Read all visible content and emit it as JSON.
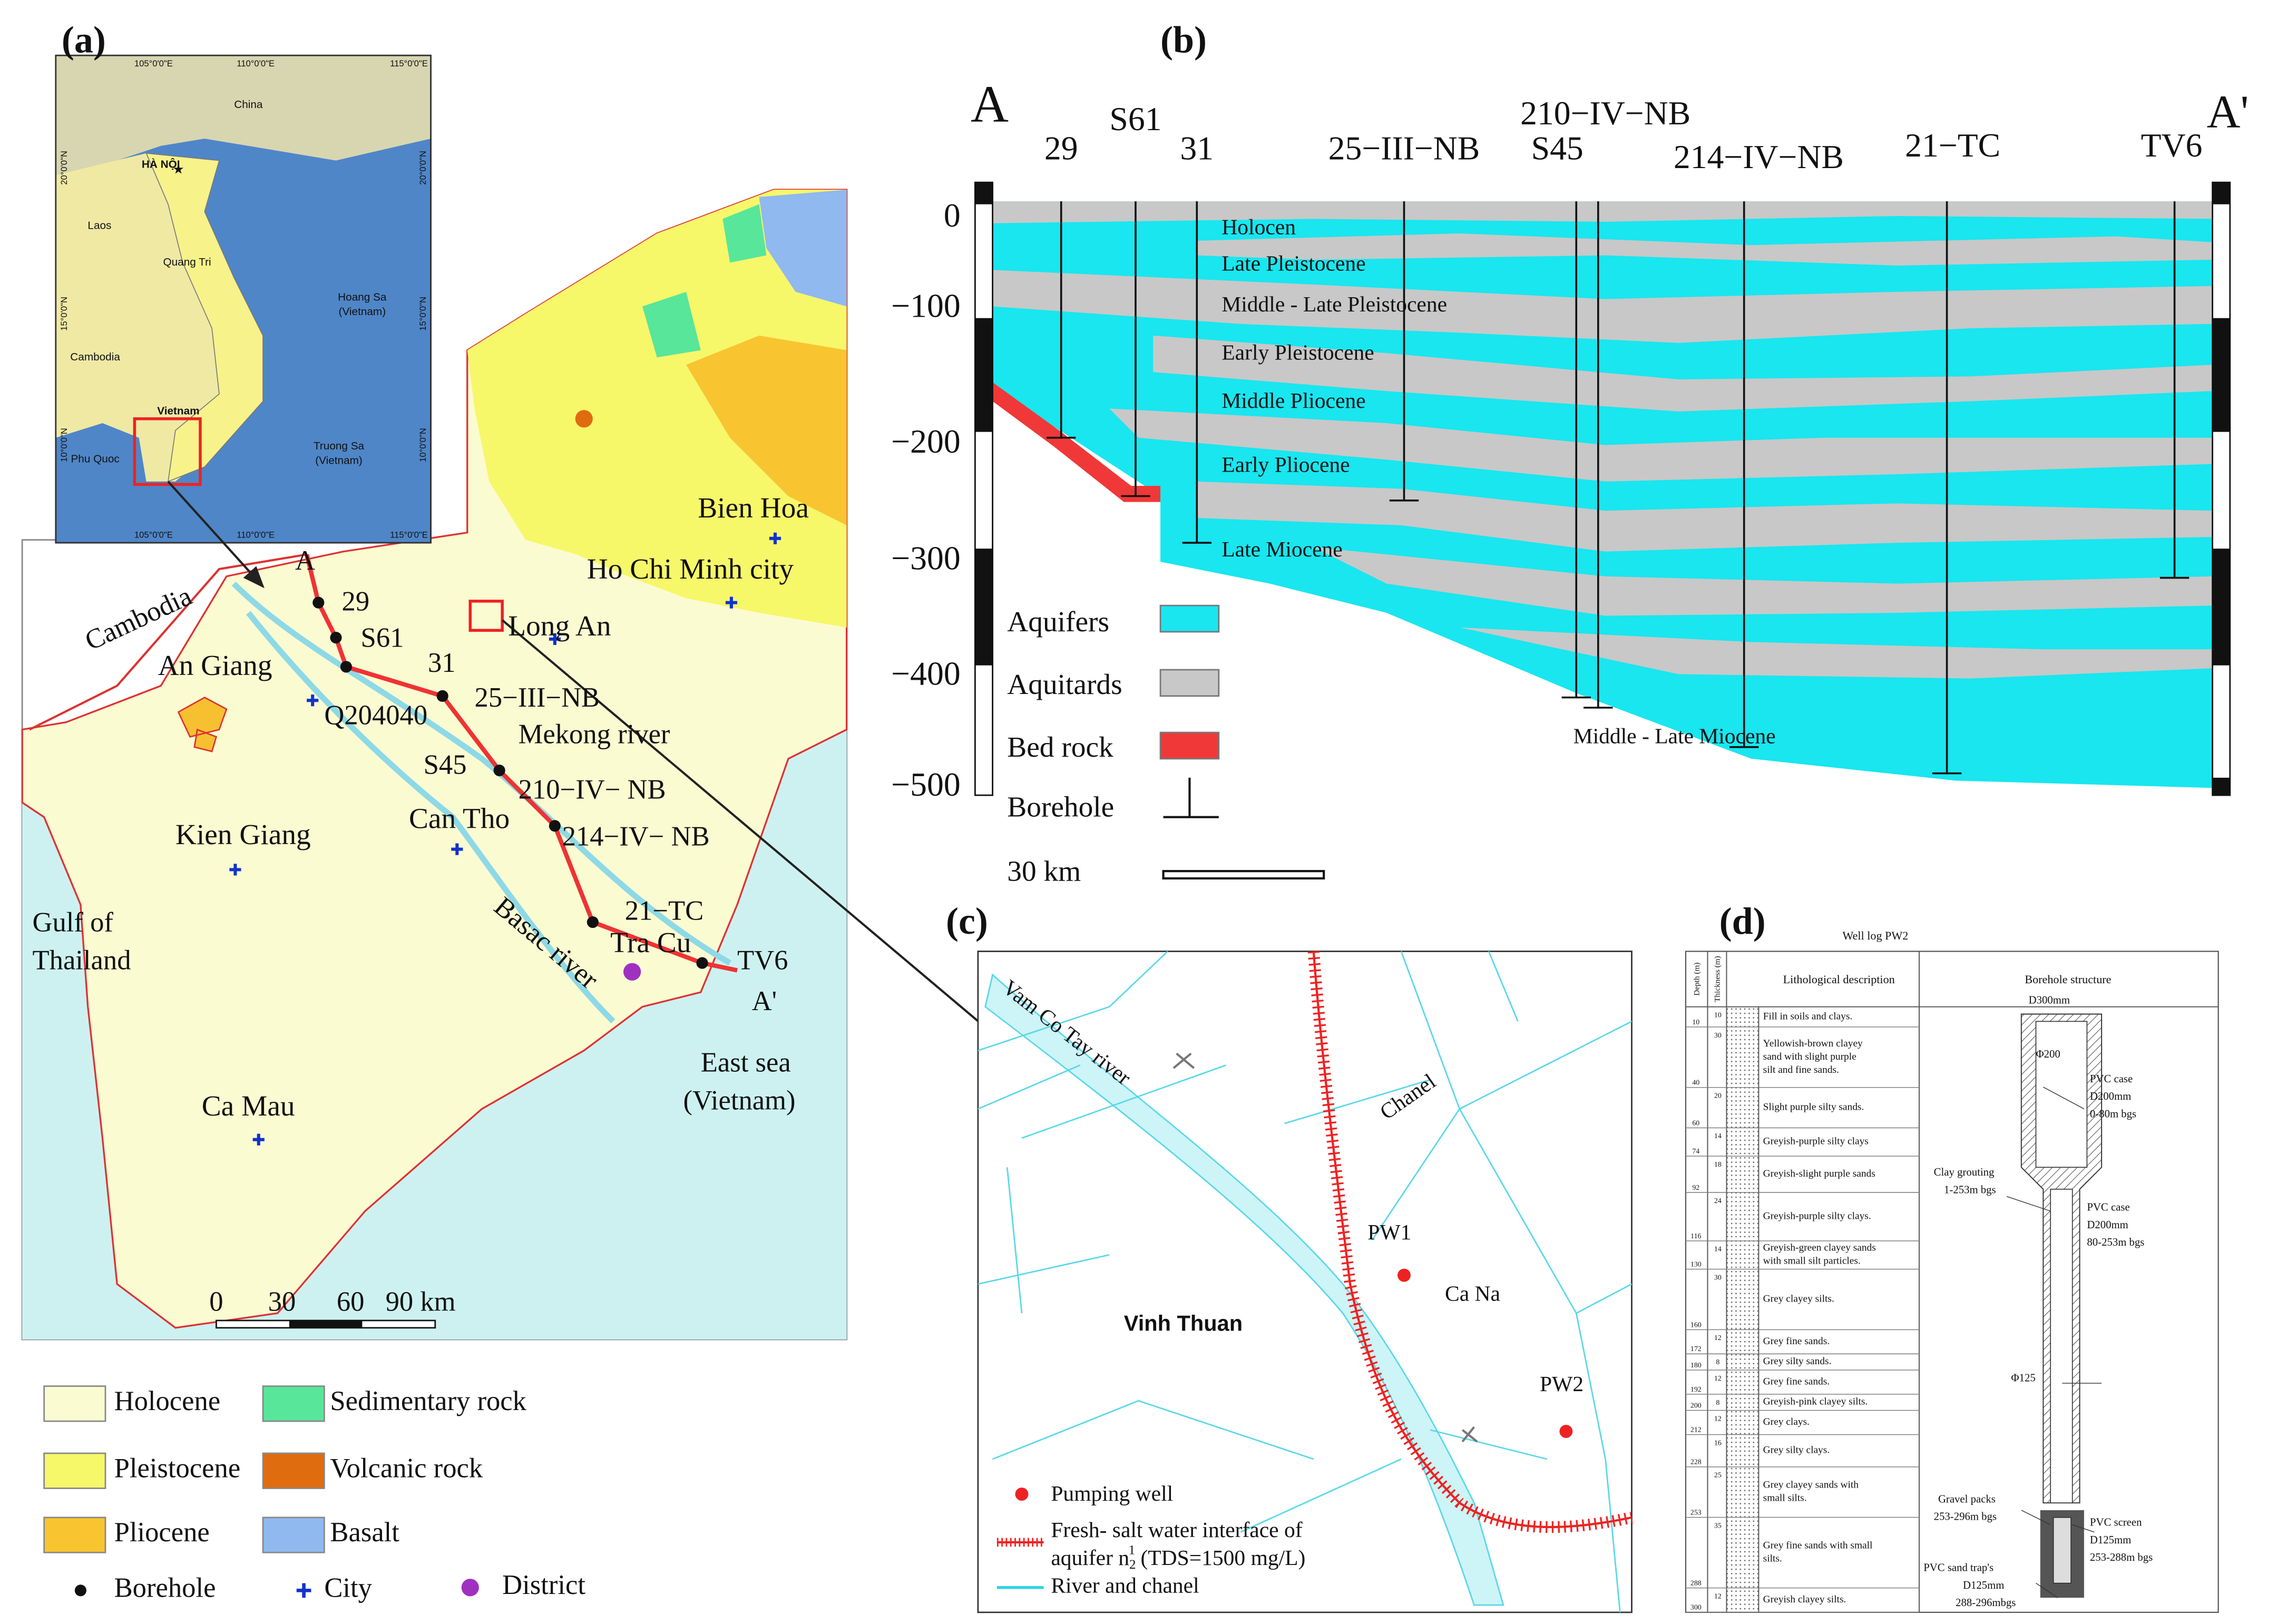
{
  "panel_a": {
    "label": "(a)",
    "inset_coords": [
      "105°0'0\"E",
      "110°0'0\"E",
      "115°0'0\"E",
      "20°0'0\"N",
      "15°0'0\"N",
      "10°0'0\"N"
    ],
    "inset_places": [
      "China",
      "HÀ NỘI",
      "Laos",
      "Quang Tri",
      "Hoang Sa",
      "(Vietnam)",
      "Cambodia",
      "Vietnam",
      "Phu Quoc",
      "Truong Sa",
      "(Vietnam)"
    ],
    "map_labels": [
      "A",
      "29",
      "S61",
      "31",
      "25−III−NB",
      "Q204040",
      "Mekong river",
      "S45",
      "210−IV− NB",
      "214−IV− NB",
      "21−TC",
      "TV6",
      "A'",
      "Basac river",
      "Gulf of",
      "Thailand",
      "East sea",
      "(Vietnam)",
      "Cambodia"
    ],
    "red_labels": [
      "Bien Hoa",
      "Ho Chi Minh city",
      "Long An",
      "An Giang",
      "Can Tho",
      "Kien Giang",
      "Tra Cu",
      "Ca Mau"
    ],
    "scale": [
      "0",
      "30",
      "60",
      "90 km"
    ],
    "legend": [
      "Holocene",
      "Pleistocene",
      "Pliocene",
      "Sedimentary rock",
      "Volcanic rock",
      "Basalt",
      "Borehole",
      "City",
      "District"
    ]
  },
  "panel_b": {
    "label": "(b)",
    "ends": [
      "A",
      "A'"
    ],
    "boreholes": [
      "29",
      "S61",
      "31",
      "25−III−NB",
      "S45",
      "210−IV−NB",
      "214−IV−NB",
      "21−TC",
      "TV6"
    ],
    "depths": [
      "0",
      "−100",
      "−200",
      "−300",
      "−400",
      "−500"
    ],
    "units": [
      "Holocen",
      "Late Pleistocene",
      "Middle - Late Pleistocene",
      "Early Pleistocene",
      "Middle Pliocene",
      "Early Pliocene",
      "Late Miocene",
      "Middle - Late Miocene"
    ],
    "legend": [
      "Aquifers",
      "Aquitards",
      "Bed rock",
      "Borehole",
      "30 km"
    ]
  },
  "panel_c": {
    "label": "(c)",
    "labels": [
      "Vam Co Tay river",
      "Chanel",
      "PW1",
      "Ca Na",
      "Vinh Thuan",
      "PW2"
    ],
    "legend": {
      "pumping": "Pumping well",
      "interface": [
        "Fresh- salt water interface of",
        "aquifer n",
        "2",
        "1",
        " (TDS=1500 mg/L)"
      ],
      "river": "River and chanel"
    }
  },
  "panel_d": {
    "label": "(d)",
    "title": "Well log PW2",
    "headers": [
      "Depth (m)",
      "Thickness (m)",
      "Lithological description",
      "Borehole structure"
    ],
    "layers": [
      {
        "depth": 10,
        "thickness": 10,
        "description": [
          "Fill in soils and clays."
        ]
      },
      {
        "depth": 40,
        "thickness": 30,
        "description": [
          "Yellowish-brown clayey",
          "sand with slight purple",
          "silt and fine sands."
        ]
      },
      {
        "depth": 60,
        "thickness": 20,
        "description": [
          "Slight purple silty sands."
        ]
      },
      {
        "depth": 74,
        "thickness": 14,
        "description": [
          "Greyish-purple silty clays"
        ]
      },
      {
        "depth": 92,
        "thickness": 18,
        "description": [
          "Greyish-slight purple sands"
        ]
      },
      {
        "depth": 116,
        "thickness": 24,
        "description": [
          "Greyish-purple silty clays."
        ]
      },
      {
        "depth": 130,
        "thickness": 14,
        "description": [
          "Greyish-green clayey sands",
          "with small silt particles."
        ]
      },
      {
        "depth": 160,
        "thickness": 30,
        "description": [
          "Grey clayey silts."
        ]
      },
      {
        "depth": 172,
        "thickness": 12,
        "description": [
          "Grey fine sands."
        ]
      },
      {
        "depth": 180,
        "thickness": 8,
        "description": [
          "Grey silty sands."
        ]
      },
      {
        "depth": 192,
        "thickness": 12,
        "description": [
          "Grey fine sands."
        ]
      },
      {
        "depth": 200,
        "thickness": 8,
        "description": [
          "Greyish-pink clayey silts."
        ]
      },
      {
        "depth": 212,
        "thickness": 12,
        "description": [
          "Grey clays."
        ]
      },
      {
        "depth": 228,
        "thickness": 16,
        "description": [
          "Grey silty clays."
        ]
      },
      {
        "depth": 253,
        "thickness": 25,
        "description": [
          "Grey clayey sands with",
          "small silts."
        ]
      },
      {
        "depth": 288,
        "thickness": 35,
        "description": [
          "Grey fine sands with small",
          "silts."
        ]
      },
      {
        "depth": 300,
        "thickness": 12,
        "description": [
          "Greyish clayey silts."
        ]
      }
    ],
    "structure": [
      "D300mm",
      "Φ200",
      "PVC case",
      "D200mm",
      "0-80m bgs",
      "Clay grouting",
      "1-253m bgs",
      "PVC case",
      "D200mm",
      "80-253m bgs",
      "Φ125",
      "Gravel packs",
      "253-296m bgs",
      "PVC screen",
      "D125mm",
      "253-288m bgs",
      "PVC sand trap's",
      "D125mm",
      "288-296mbgs"
    ]
  }
}
